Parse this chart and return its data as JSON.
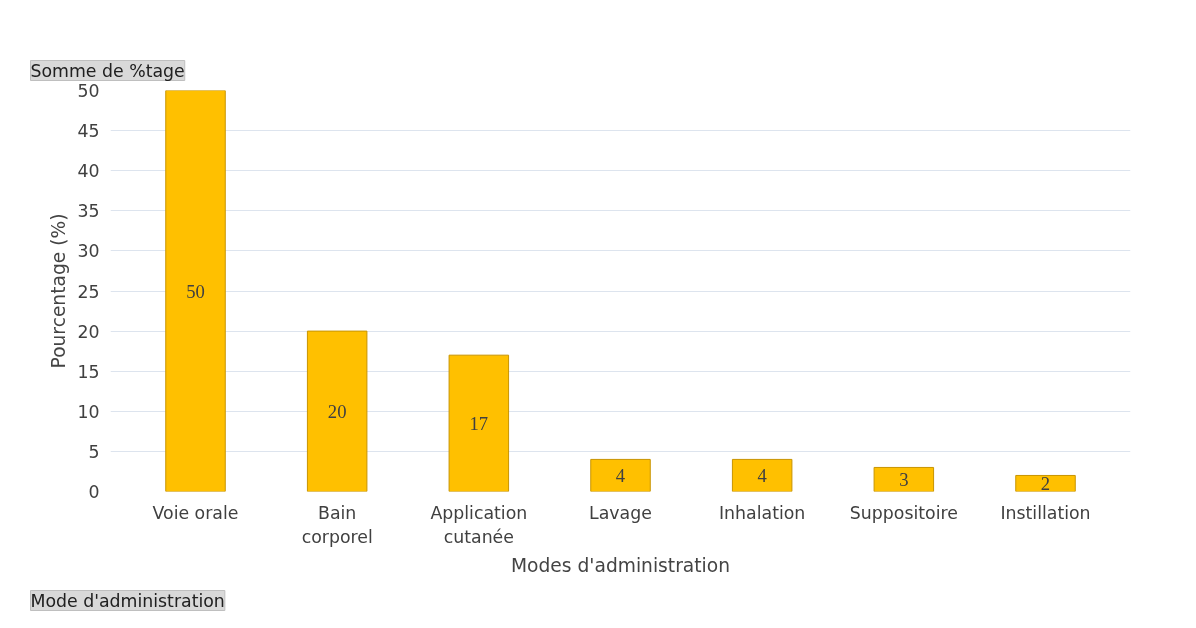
{
  "chart_data": {
    "type": "bar",
    "categories": [
      "Voie orale",
      "Bain corporel",
      "Application cutanée",
      "Lavage",
      "Inhalation",
      "Suppositoire",
      "Instillation"
    ],
    "values": [
      50,
      20,
      17,
      4,
      4,
      3,
      2
    ],
    "color": "#ffc000",
    "xlabel": "Modes d'administration",
    "ylabel": "Pourcentage (%)",
    "ylim": [
      0,
      50
    ],
    "yticks": [
      0,
      5,
      10,
      15,
      20,
      25,
      30,
      35,
      40,
      45,
      50
    ],
    "grid": "y",
    "data_labels": true,
    "annotations": [
      "Somme de %tage",
      "Mode d'administration"
    ]
  }
}
